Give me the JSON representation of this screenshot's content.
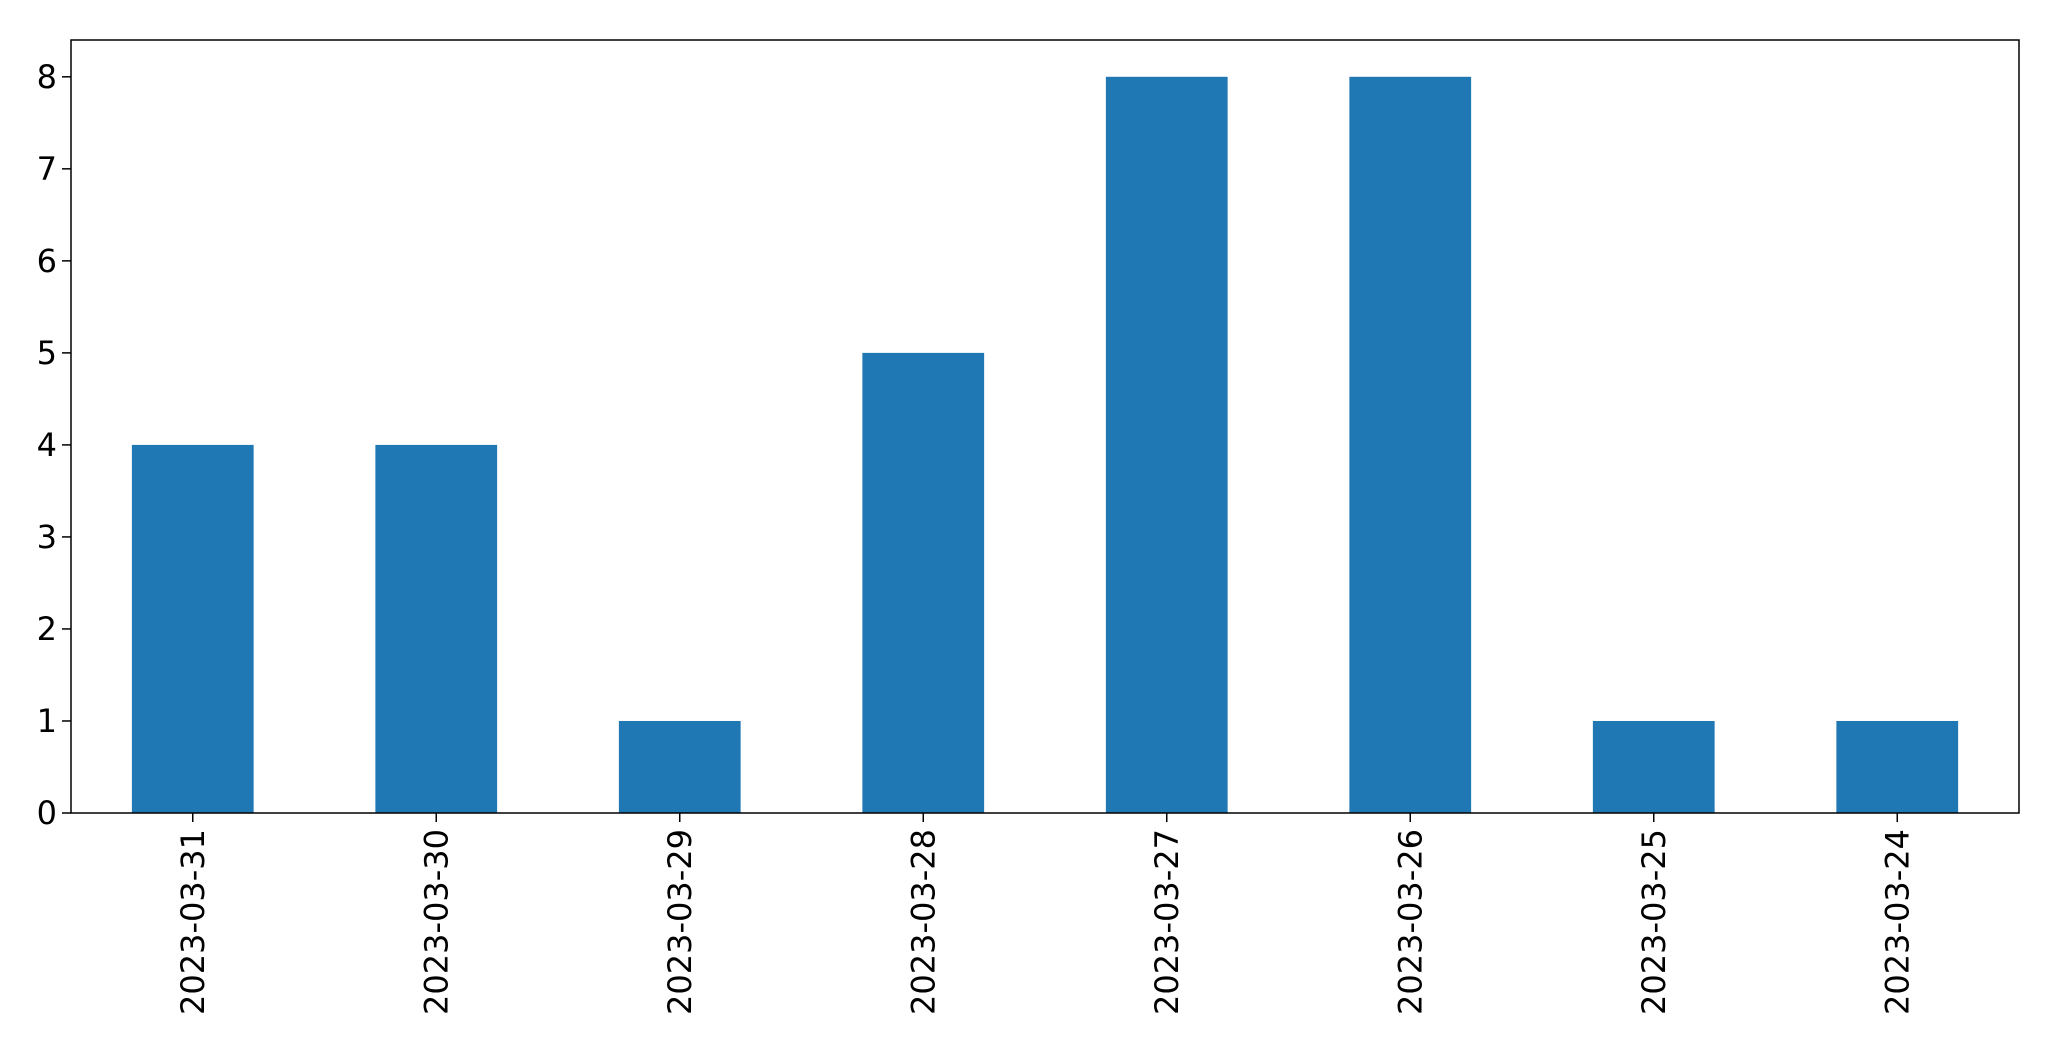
{
  "chart_data": {
    "type": "bar",
    "title": "",
    "xlabel": "",
    "ylabel": "",
    "categories": [
      "2023-03-31",
      "2023-03-30",
      "2023-03-29",
      "2023-03-28",
      "2023-03-27",
      "2023-03-26",
      "2023-03-25",
      "2023-03-24"
    ],
    "values": [
      4,
      4,
      1,
      5,
      8,
      8,
      1,
      1
    ],
    "ylim": [
      0,
      8.4
    ],
    "yticks": [
      0,
      1,
      2,
      3,
      4,
      5,
      6,
      7,
      8
    ],
    "bar_color": "#1f77b4",
    "grid": false,
    "legend": "none"
  }
}
